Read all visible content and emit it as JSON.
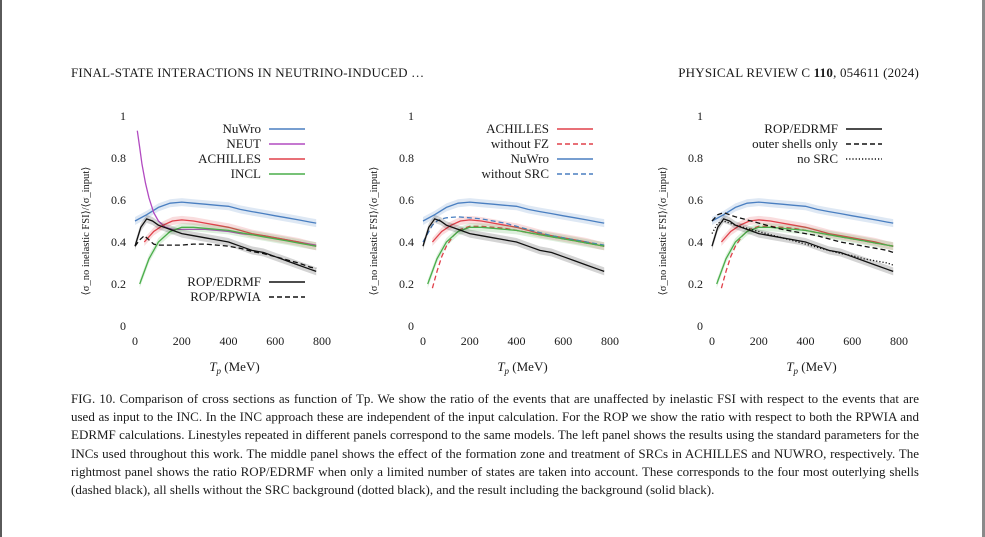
{
  "header": {
    "left": "FINAL-STATE INTERACTIONS IN NEUTRINO-INDUCED …",
    "right_prefix": "PHYSICAL REVIEW C ",
    "right_volume": "110",
    "right_suffix": ", 054611 (2024)"
  },
  "caption": {
    "label": "FIG. 10.",
    "text": "Comparison of cross sections as function of Tp. We show the ratio of the events that are unaffected by inelastic FSI with respect to the events that are used as input to the INC. In the INC approach these are independent of the input calculation. For the ROP we show the ratio with respect to both the RPWIA and EDRMF calculations. Linestyles repeated in different panels correspond to the same models. The left panel shows the results using the standard parameters for the INCs used throughout this work. The middle panel shows the effect of the formation zone and treatment of SRCs in ACHILLES and NUWRO, respectively. The rightmost panel shows the ratio ROP/EDRMF when only a limited number of states are taken into account. These corresponds to the four most outerlying shells (dashed black), all shells without the SRC background (dotted black), and the result including the background (solid black)."
  },
  "colors": {
    "nuwro": "#4a7fc1",
    "neut": "#b24bc1",
    "achilles": "#e0404a",
    "incl": "#4aae4a",
    "rop": "#111111"
  },
  "chart_data": [
    {
      "type": "line",
      "panel": "left",
      "xlabel": "T_p (MeV)",
      "ylabel": "⟨σ_no inelastic FSI⟩/⟨σ_input⟩",
      "xlim": [
        0,
        800
      ],
      "ylim": [
        0,
        1
      ],
      "xticks": [
        0,
        200,
        400,
        600,
        800
      ],
      "yticks": [
        "0",
        "0.2",
        "0.4",
        "0.6",
        "0.8",
        "1"
      ],
      "legend_top": [
        "NuWro",
        "NEUT",
        "ACHILLES",
        "INCL"
      ],
      "legend_bottom": [
        "ROP/EDRMF",
        "ROP/RPWIA"
      ],
      "series": [
        {
          "name": "NuWro",
          "color": "nuwro",
          "dash": "solid",
          "band": true,
          "x": [
            0,
            50,
            100,
            150,
            200,
            250,
            300,
            350,
            400,
            450,
            500,
            550,
            600,
            650,
            700,
            750,
            775
          ],
          "y": [
            0.5,
            0.53,
            0.565,
            0.585,
            0.59,
            0.585,
            0.58,
            0.575,
            0.57,
            0.555,
            0.545,
            0.535,
            0.525,
            0.515,
            0.505,
            0.495,
            0.49
          ]
        },
        {
          "name": "NEUT",
          "color": "neut",
          "dash": "solid",
          "band": false,
          "x": [
            10,
            20,
            30,
            45,
            60,
            80,
            100,
            130,
            160,
            200,
            250,
            300,
            350,
            400,
            450,
            500,
            550,
            600,
            650,
            700,
            750,
            775
          ],
          "y": [
            0.93,
            0.85,
            0.77,
            0.68,
            0.61,
            0.54,
            0.5,
            0.47,
            0.46,
            0.46,
            0.46,
            0.46,
            0.455,
            0.45,
            0.44,
            0.435,
            0.43,
            0.42,
            0.41,
            0.4,
            0.39,
            0.385
          ]
        },
        {
          "name": "ACHILLES",
          "color": "achilles",
          "dash": "solid",
          "band": true,
          "x": [
            40,
            80,
            120,
            160,
            200,
            250,
            300,
            350,
            400,
            450,
            500,
            550,
            600,
            650,
            700,
            750,
            775
          ],
          "y": [
            0.4,
            0.45,
            0.48,
            0.5,
            0.505,
            0.5,
            0.49,
            0.48,
            0.47,
            0.455,
            0.44,
            0.43,
            0.42,
            0.41,
            0.4,
            0.385,
            0.38
          ]
        },
        {
          "name": "INCL",
          "color": "incl",
          "dash": "solid",
          "band": true,
          "x": [
            20,
            60,
            100,
            150,
            200,
            250,
            300,
            350,
            400,
            450,
            500,
            550,
            600,
            650,
            700,
            750,
            775
          ],
          "y": [
            0.2,
            0.32,
            0.4,
            0.45,
            0.47,
            0.47,
            0.465,
            0.46,
            0.455,
            0.445,
            0.435,
            0.425,
            0.415,
            0.405,
            0.395,
            0.385,
            0.38
          ]
        },
        {
          "name": "ROP/EDRMF",
          "color": "rop",
          "dash": "solid",
          "band": true,
          "x": [
            0,
            25,
            50,
            75,
            100,
            150,
            200,
            250,
            300,
            350,
            400,
            450,
            500,
            550,
            600,
            650,
            700,
            750,
            775
          ],
          "y": [
            0.38,
            0.47,
            0.51,
            0.5,
            0.48,
            0.46,
            0.44,
            0.43,
            0.42,
            0.41,
            0.4,
            0.38,
            0.36,
            0.35,
            0.33,
            0.31,
            0.29,
            0.27,
            0.26
          ]
        },
        {
          "name": "ROP/RPWIA",
          "color": "rop",
          "dash": "dashed",
          "band": false,
          "x": [
            0,
            20,
            40,
            60,
            80,
            100,
            150,
            200,
            250,
            300,
            350,
            400,
            450,
            500,
            550,
            600,
            650,
            700,
            750,
            775
          ],
          "y": [
            0.38,
            0.41,
            0.43,
            0.41,
            0.39,
            0.385,
            0.385,
            0.385,
            0.39,
            0.39,
            0.385,
            0.38,
            0.37,
            0.355,
            0.345,
            0.33,
            0.315,
            0.3,
            0.28,
            0.275
          ]
        }
      ]
    },
    {
      "type": "line",
      "panel": "middle",
      "xlabel": "T_p (MeV)",
      "ylabel": "⟨σ_no inelastic FSI⟩/⟨σ_input⟩",
      "xlim": [
        0,
        800
      ],
      "ylim": [
        0,
        1
      ],
      "xticks": [
        0,
        200,
        400,
        600,
        800
      ],
      "yticks": [
        "0",
        "0.2",
        "0.4",
        "0.6",
        "0.8",
        "1"
      ],
      "legend_top": [
        "ACHILLES",
        "without FZ",
        "NuWro",
        "without SRC"
      ],
      "legend_bottom": [],
      "series": [
        {
          "name": "ACHILLES",
          "color": "achilles",
          "dash": "solid",
          "band": true,
          "x": [
            40,
            80,
            120,
            160,
            200,
            250,
            300,
            350,
            400,
            450,
            500,
            550,
            600,
            650,
            700,
            750,
            775
          ],
          "y": [
            0.4,
            0.45,
            0.48,
            0.5,
            0.505,
            0.5,
            0.49,
            0.48,
            0.47,
            0.455,
            0.44,
            0.43,
            0.42,
            0.41,
            0.4,
            0.385,
            0.38
          ]
        },
        {
          "name": "without FZ",
          "color": "achilles",
          "dash": "dashed",
          "band": false,
          "x": [
            40,
            60,
            80,
            100,
            130,
            160,
            200,
            250,
            300,
            350,
            400,
            450,
            500,
            550,
            600,
            650,
            700,
            750,
            775
          ],
          "y": [
            0.18,
            0.26,
            0.33,
            0.38,
            0.43,
            0.46,
            0.475,
            0.475,
            0.47,
            0.465,
            0.455,
            0.445,
            0.435,
            0.425,
            0.415,
            0.405,
            0.395,
            0.385,
            0.38
          ]
        },
        {
          "name": "NuWro",
          "color": "nuwro",
          "dash": "solid",
          "band": true,
          "x": [
            0,
            50,
            100,
            150,
            200,
            250,
            300,
            350,
            400,
            450,
            500,
            550,
            600,
            650,
            700,
            750,
            775
          ],
          "y": [
            0.5,
            0.53,
            0.565,
            0.585,
            0.59,
            0.585,
            0.58,
            0.575,
            0.57,
            0.555,
            0.545,
            0.535,
            0.525,
            0.515,
            0.505,
            0.495,
            0.49
          ]
        },
        {
          "name": "without SRC",
          "color": "nuwro",
          "dash": "dashed",
          "band": false,
          "x": [
            0,
            20,
            40,
            60,
            80,
            100,
            150,
            200,
            250,
            300,
            350,
            400,
            450,
            500,
            550,
            600,
            650,
            700,
            750,
            775
          ],
          "y": [
            0.4,
            0.44,
            0.48,
            0.5,
            0.51,
            0.515,
            0.52,
            0.515,
            0.51,
            0.5,
            0.49,
            0.475,
            0.46,
            0.445,
            0.43,
            0.42,
            0.41,
            0.4,
            0.39,
            0.385
          ]
        },
        {
          "name": "INCL",
          "color": "incl",
          "dash": "solid",
          "band": true,
          "x": [
            20,
            60,
            100,
            150,
            200,
            250,
            300,
            350,
            400,
            450,
            500,
            550,
            600,
            650,
            700,
            750,
            775
          ],
          "y": [
            0.2,
            0.32,
            0.4,
            0.45,
            0.47,
            0.47,
            0.465,
            0.46,
            0.455,
            0.445,
            0.435,
            0.425,
            0.415,
            0.405,
            0.395,
            0.385,
            0.38
          ]
        },
        {
          "name": "ROP/EDRMF",
          "color": "rop",
          "dash": "solid",
          "band": true,
          "x": [
            0,
            25,
            50,
            75,
            100,
            150,
            200,
            250,
            300,
            350,
            400,
            450,
            500,
            550,
            600,
            650,
            700,
            750,
            775
          ],
          "y": [
            0.38,
            0.47,
            0.51,
            0.5,
            0.48,
            0.46,
            0.44,
            0.43,
            0.42,
            0.41,
            0.4,
            0.38,
            0.36,
            0.35,
            0.33,
            0.31,
            0.29,
            0.27,
            0.26
          ]
        }
      ]
    },
    {
      "type": "line",
      "panel": "right",
      "xlabel": "T_p (MeV)",
      "ylabel": "⟨σ_no inelastic FSI⟩/⟨σ_input⟩",
      "xlim": [
        0,
        800
      ],
      "ylim": [
        0,
        1
      ],
      "xticks": [
        0,
        200,
        400,
        600,
        800
      ],
      "yticks": [
        "0",
        "0.2",
        "0.4",
        "0.6",
        "0.8",
        "1"
      ],
      "legend_top": [
        "ROP/EDRMF",
        "outer shells only",
        "no SRC"
      ],
      "legend_bottom": [],
      "series": [
        {
          "name": "NuWro",
          "color": "nuwro",
          "dash": "solid",
          "band": true,
          "x": [
            0,
            50,
            100,
            150,
            200,
            250,
            300,
            350,
            400,
            450,
            500,
            550,
            600,
            650,
            700,
            750,
            775
          ],
          "y": [
            0.5,
            0.53,
            0.565,
            0.585,
            0.59,
            0.585,
            0.58,
            0.575,
            0.57,
            0.555,
            0.545,
            0.535,
            0.525,
            0.515,
            0.505,
            0.495,
            0.49
          ]
        },
        {
          "name": "ACHILLES",
          "color": "achilles",
          "dash": "solid",
          "band": true,
          "x": [
            40,
            80,
            120,
            160,
            200,
            250,
            300,
            350,
            400,
            450,
            500,
            550,
            600,
            650,
            700,
            750,
            775
          ],
          "y": [
            0.4,
            0.45,
            0.48,
            0.5,
            0.505,
            0.5,
            0.49,
            0.48,
            0.47,
            0.455,
            0.44,
            0.43,
            0.42,
            0.41,
            0.4,
            0.385,
            0.38
          ]
        },
        {
          "name": "without FZ",
          "color": "achilles",
          "dash": "dashed",
          "band": false,
          "x": [
            40,
            60,
            80,
            100,
            130,
            160,
            200,
            250,
            300,
            350,
            400,
            450,
            500,
            550,
            600,
            650,
            700,
            750,
            775
          ],
          "y": [
            0.18,
            0.26,
            0.33,
            0.38,
            0.43,
            0.46,
            0.475,
            0.475,
            0.47,
            0.465,
            0.455,
            0.445,
            0.435,
            0.425,
            0.415,
            0.405,
            0.395,
            0.385,
            0.38
          ]
        },
        {
          "name": "INCL",
          "color": "incl",
          "dash": "solid",
          "band": true,
          "x": [
            20,
            60,
            100,
            150,
            200,
            250,
            300,
            350,
            400,
            450,
            500,
            550,
            600,
            650,
            700,
            750,
            775
          ],
          "y": [
            0.2,
            0.32,
            0.4,
            0.45,
            0.47,
            0.47,
            0.465,
            0.46,
            0.455,
            0.445,
            0.435,
            0.425,
            0.415,
            0.405,
            0.395,
            0.385,
            0.38
          ]
        },
        {
          "name": "outer shells only",
          "color": "rop",
          "dash": "dashed",
          "band": false,
          "x": [
            0,
            25,
            50,
            75,
            100,
            150,
            200,
            250,
            300,
            350,
            400,
            450,
            500,
            550,
            600,
            650,
            700,
            750,
            775
          ],
          "y": [
            0.5,
            0.53,
            0.54,
            0.53,
            0.52,
            0.505,
            0.49,
            0.475,
            0.46,
            0.45,
            0.44,
            0.43,
            0.415,
            0.4,
            0.39,
            0.38,
            0.37,
            0.36,
            0.35
          ]
        },
        {
          "name": "no SRC",
          "color": "rop",
          "dash": "dotted",
          "band": false,
          "x": [
            0,
            25,
            50,
            75,
            100,
            150,
            200,
            250,
            300,
            350,
            400,
            450,
            500,
            550,
            600,
            650,
            700,
            750,
            775
          ],
          "y": [
            0.44,
            0.49,
            0.5,
            0.49,
            0.48,
            0.465,
            0.45,
            0.435,
            0.42,
            0.405,
            0.39,
            0.375,
            0.36,
            0.345,
            0.335,
            0.32,
            0.31,
            0.3,
            0.29
          ]
        },
        {
          "name": "ROP/EDRMF",
          "color": "rop",
          "dash": "solid",
          "band": true,
          "x": [
            0,
            25,
            50,
            75,
            100,
            150,
            200,
            250,
            300,
            350,
            400,
            450,
            500,
            550,
            600,
            650,
            700,
            750,
            775
          ],
          "y": [
            0.38,
            0.47,
            0.51,
            0.5,
            0.48,
            0.46,
            0.44,
            0.43,
            0.42,
            0.41,
            0.4,
            0.38,
            0.36,
            0.35,
            0.33,
            0.31,
            0.29,
            0.27,
            0.26
          ]
        }
      ]
    }
  ]
}
